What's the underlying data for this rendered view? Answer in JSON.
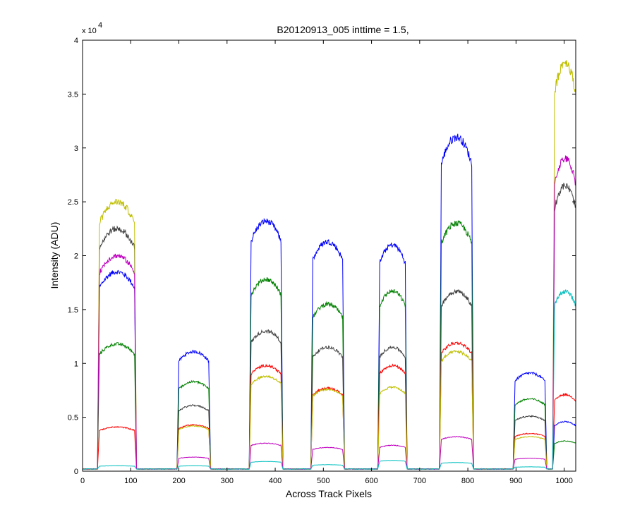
{
  "chart_data": {
    "type": "line",
    "title": "B20120913_005 inttime = 1.5,",
    "xlabel": "Across Track Pixels",
    "ylabel": "Intensity (ADU)",
    "xlim": [
      0,
      1024
    ],
    "ylim": [
      0,
      40000
    ],
    "x_ticks": [
      0,
      100,
      200,
      300,
      400,
      500,
      600,
      700,
      800,
      900,
      1000
    ],
    "y_ticks": [
      0,
      5000,
      10000,
      15000,
      20000,
      25000,
      30000,
      35000,
      40000
    ],
    "y_tick_labels": [
      "0",
      "0.5",
      "1",
      "1.5",
      "2",
      "2.5",
      "3",
      "3.5",
      "4"
    ],
    "y_multiplier_prefix": "x 10",
    "y_multiplier_exponent": "4",
    "grid": false,
    "baseline": 200,
    "windows": [
      [
        35,
        108
      ],
      [
        200,
        262
      ],
      [
        350,
        412
      ],
      [
        478,
        540
      ],
      [
        617,
        670
      ],
      [
        745,
        808
      ],
      [
        898,
        960
      ],
      [
        980,
        1024
      ]
    ],
    "series": [
      {
        "color": "#0000ff",
        "levels": [
          18500,
          11100,
          23200,
          21300,
          21000,
          31000,
          9100,
          4600
        ]
      },
      {
        "color": "#008000",
        "levels": [
          11800,
          8300,
          17800,
          15500,
          16700,
          23000,
          6700,
          2800
        ]
      },
      {
        "color": "#404040",
        "levels": [
          22500,
          6100,
          13000,
          11500,
          11500,
          16700,
          5100,
          26500
        ]
      },
      {
        "color": "#ff0000",
        "levels": [
          4100,
          4300,
          9800,
          7700,
          9800,
          11900,
          3500,
          7100
        ]
      },
      {
        "color": "#bfbf00",
        "levels": [
          25000,
          4200,
          8800,
          7600,
          7800,
          11100,
          3200,
          38000
        ]
      },
      {
        "color": "#bf00bf",
        "levels": [
          20000,
          1300,
          2600,
          2200,
          2400,
          3200,
          1200,
          29000
        ]
      },
      {
        "color": "#00bfbf",
        "levels": [
          500,
          500,
          900,
          600,
          1000,
          800,
          400,
          16700
        ]
      }
    ]
  }
}
